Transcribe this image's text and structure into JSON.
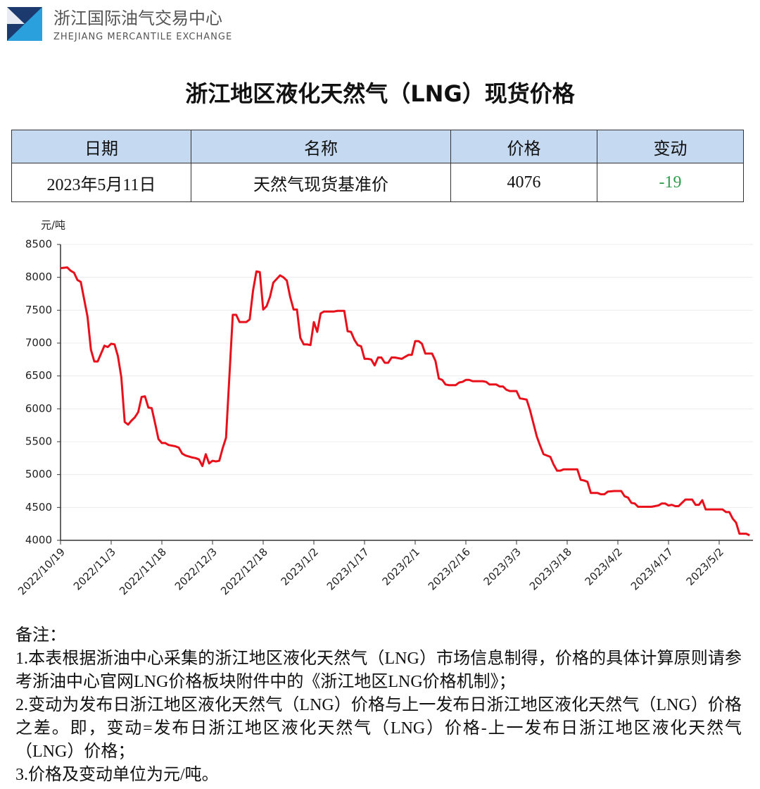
{
  "header": {
    "org_name": "浙江国际油气交易中心",
    "org_name_en": "ZHEJIANG MERCANTILE EXCHANGE"
  },
  "title": "浙江地区液化天然气（LNG）现货价格",
  "table": {
    "headers": [
      "日期",
      "名称",
      "价格",
      "变动"
    ],
    "rows": [
      [
        "2023年5月11日",
        "天然气现货基准价",
        4076,
        -19
      ]
    ]
  },
  "chart_data": {
    "type": "line",
    "y_label": "元/吨",
    "x": [
      "2022/10/19",
      "2022/10/21",
      "2022/10/22",
      "2022/10/23",
      "2022/10/24",
      "2022/10/25",
      "2022/10/27",
      "2022/10/28",
      "2022/10/29",
      "2022/10/30",
      "2022/11/1",
      "2022/11/2",
      "2022/11/3",
      "2022/11/4",
      "2022/11/5",
      "2022/11/6",
      "2022/11/7",
      "2022/11/8",
      "2022/11/9",
      "2022/11/10",
      "2022/11/11",
      "2022/11/12",
      "2022/11/13",
      "2022/11/14",
      "2022/11/15",
      "2022/11/16",
      "2022/11/17",
      "2022/11/18",
      "2022/11/19",
      "2022/11/20",
      "2022/11/22",
      "2022/11/23",
      "2022/11/24",
      "2022/11/25",
      "2022/11/27",
      "2022/11/28",
      "2022/11/29",
      "2022/11/30",
      "2022/12/1",
      "2022/12/2",
      "2022/12/3",
      "2022/12/4",
      "2022/12/5",
      "2022/12/6",
      "2022/12/7",
      "2022/12/8",
      "2022/12/9",
      "2022/12/10",
      "2022/12/11",
      "2022/12/13",
      "2022/12/14",
      "2022/12/15",
      "2022/12/16",
      "2022/12/17",
      "2022/12/18",
      "2022/12/19",
      "2022/12/20",
      "2022/12/21",
      "2022/12/23",
      "2022/12/24",
      "2022/12/25",
      "2022/12/26",
      "2022/12/27",
      "2022/12/28",
      "2022/12/29",
      "2022/12/30",
      "2022/12/31",
      "2023/1/1",
      "2023/1/2",
      "2023/1/3",
      "2023/1/4",
      "2023/1/5",
      "2023/1/6",
      "2023/1/8",
      "2023/1/9",
      "2023/1/11",
      "2023/1/12",
      "2023/1/13",
      "2023/1/14",
      "2023/1/15",
      "2023/1/16",
      "2023/1/17",
      "2023/1/18",
      "2023/1/19",
      "2023/1/20",
      "2023/1/21",
      "2023/1/22",
      "2023/1/23",
      "2023/1/24",
      "2023/1/25",
      "2023/1/26",
      "2023/1/28",
      "2023/1/29",
      "2023/1/30",
      "2023/1/31",
      "2023/2/1",
      "2023/2/2",
      "2023/2/3",
      "2023/2/4",
      "2023/2/6",
      "2023/2/7",
      "2023/2/8",
      "2023/2/9",
      "2023/2/10",
      "2023/2/11",
      "2023/2/13",
      "2023/2/14",
      "2023/2/15",
      "2023/2/16",
      "2023/2/17",
      "2023/2/18",
      "2023/2/21",
      "2023/2/22",
      "2023/2/23",
      "2023/2/25",
      "2023/2/26",
      "2023/2/27",
      "2023/2/28",
      "2023/3/1",
      "2023/3/3",
      "2023/3/4",
      "2023/3/5",
      "2023/3/6",
      "2023/3/7",
      "2023/3/8",
      "2023/3/9",
      "2023/3/10",
      "2023/3/11",
      "2023/3/13",
      "2023/3/14",
      "2023/3/15",
      "2023/3/16",
      "2023/3/17",
      "2023/3/21",
      "2023/3/22",
      "2023/3/23",
      "2023/3/24",
      "2023/3/25",
      "2023/3/27",
      "2023/3/28",
      "2023/3/29",
      "2023/3/30",
      "2023/4/1",
      "2023/4/3",
      "2023/4/4",
      "2023/4/5",
      "2023/4/6",
      "2023/4/7",
      "2023/4/8",
      "2023/4/12",
      "2023/4/14",
      "2023/4/15",
      "2023/4/16",
      "2023/4/17",
      "2023/4/18",
      "2023/4/19",
      "2023/4/20",
      "2023/4/22",
      "2023/4/24",
      "2023/4/25",
      "2023/4/26",
      "2023/4/27",
      "2023/4/28",
      "2023/5/3",
      "2023/5/4",
      "2023/5/5",
      "2023/5/6",
      "2023/5/7",
      "2023/5/8",
      "2023/5/10",
      "2023/5/11"
    ],
    "values": [
      8140,
      8150,
      8100,
      8070,
      7960,
      7930,
      7400,
      6900,
      6720,
      6720,
      6960,
      6940,
      6990,
      6980,
      6800,
      6480,
      5800,
      5760,
      5820,
      5870,
      5950,
      6180,
      6190,
      6020,
      6010,
      5780,
      5540,
      5480,
      5480,
      5450,
      5430,
      5410,
      5320,
      5290,
      5260,
      5250,
      5230,
      5130,
      5310,
      5170,
      5210,
      5200,
      5210,
      5400,
      5560,
      6500,
      7430,
      7430,
      7320,
      7320,
      7360,
      7800,
      8090,
      8080,
      7510,
      7560,
      7700,
      7920,
      8030,
      8000,
      7950,
      7700,
      7510,
      7510,
      7080,
      6980,
      6980,
      6970,
      7320,
      7170,
      7450,
      7480,
      7480,
      7480,
      7490,
      7490,
      7180,
      7170,
      7050,
      6970,
      6950,
      6760,
      6760,
      6750,
      6660,
      6780,
      6780,
      6700,
      6700,
      6780,
      6780,
      6760,
      6790,
      6820,
      6820,
      7030,
      7030,
      6990,
      6840,
      6840,
      6730,
      6460,
      6440,
      6370,
      6360,
      6360,
      6400,
      6410,
      6440,
      6440,
      6420,
      6420,
      6410,
      6370,
      6370,
      6340,
      6340,
      6290,
      6270,
      6270,
      6160,
      6150,
      6140,
      5980,
      5780,
      5580,
      5440,
      5310,
      5270,
      5150,
      5060,
      5060,
      5080,
      5080,
      4920,
      4910,
      4890,
      4720,
      4720,
      4700,
      4700,
      4740,
      4750,
      4750,
      4670,
      4650,
      4570,
      4560,
      4510,
      4510,
      4530,
      4560,
      4560,
      4530,
      4540,
      4520,
      4520,
      4620,
      4620,
      4540,
      4540,
      4610,
      4470,
      4470,
      4430,
      4430,
      4330,
      4270,
      4100,
      4100,
      4076
    ],
    "color": "#e8101a",
    "xlim": [
      "2022/10/19",
      "2023/5/12"
    ],
    "xticks": [
      "2022/10/19",
      "2022/11/3",
      "2022/11/18",
      "2022/12/3",
      "2022/12/18",
      "2023/1/2",
      "2023/1/17",
      "2023/2/1",
      "2023/2/16",
      "2023/3/3",
      "2023/3/18",
      "2023/4/2",
      "2023/4/17",
      "2023/5/2"
    ],
    "ylim": [
      4000,
      8500
    ],
    "yticks": [
      4000,
      4500,
      5000,
      5500,
      6000,
      6500,
      7000,
      7500,
      8000,
      8500
    ],
    "grid": true
  },
  "notes": {
    "heading": "备注：",
    "items": [
      "1.本表根据浙油中心采集的浙江地区液化天然气（LNG）市场信息制得，价格的具体计算原则请参考浙油中心官网LNG价格板块附件中的《浙江地区LNG价格机制》；",
      "2.变动为发布日浙江地区液化天然气（LNG）价格与上一发布日浙江地区液化天然气（LNG）价格之差。即，变动=发布日浙江地区液化天然气（LNG）价格-上一发布日浙江地区液化天然气（LNG）价格；",
      "3.价格及变动单位为元/吨。"
    ]
  }
}
